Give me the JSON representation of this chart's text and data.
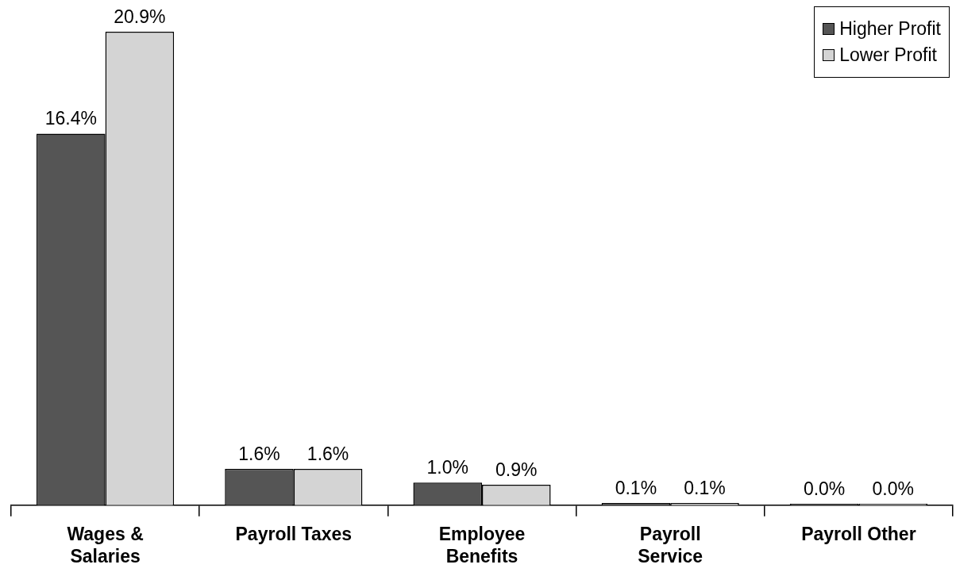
{
  "chart_data": {
    "type": "bar",
    "categories": [
      "Wages & Salaries",
      "Payroll Taxes",
      "Employee Benefits",
      "Payroll Service",
      "Payroll Other"
    ],
    "series": [
      {
        "name": "Higher Profit",
        "color": "#555555",
        "values": [
          16.4,
          1.6,
          1.0,
          0.1,
          0.0
        ],
        "value_labels": [
          "16.4%",
          "1.6%",
          "1.0%",
          "0.1%",
          "0.0%"
        ]
      },
      {
        "name": "Lower Profit",
        "color": "#d4d4d4",
        "values": [
          20.9,
          1.6,
          0.9,
          0.1,
          0.0
        ],
        "value_labels": [
          "20.9%",
          "1.6%",
          "0.9%",
          "0.1%",
          "0.0%"
        ]
      }
    ],
    "legend": "top right",
    "grid": false
  }
}
